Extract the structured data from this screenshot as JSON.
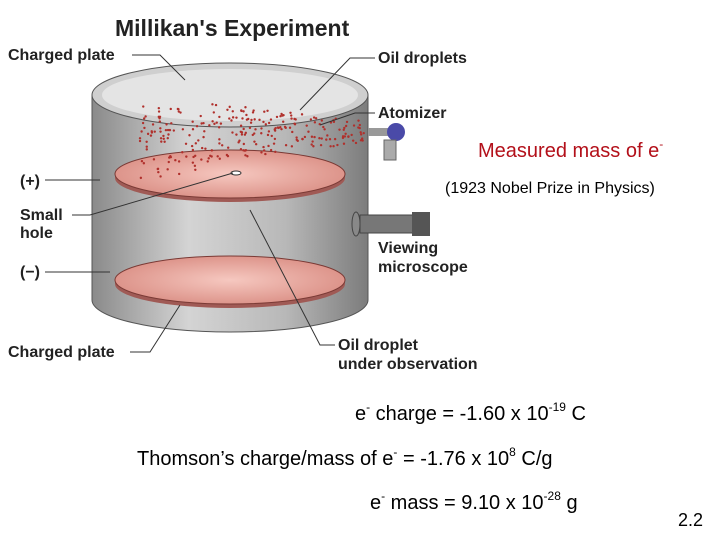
{
  "diagram": {
    "title": "Millikan's Experiment",
    "labels": {
      "top_plate": "Charged plate",
      "oil_droplets": "Oil droplets",
      "atomizer": "Atomizer",
      "plus": "(+)",
      "small_hole": [
        "Small",
        "hole"
      ],
      "minus": "(−)",
      "microscope": [
        "Viewing",
        "microscope"
      ],
      "bottom_plate": "Charged plate",
      "droplet": [
        "Oil droplet",
        "under observation"
      ]
    }
  },
  "notes": {
    "measured": [
      "Measured mass of e",
      "-"
    ],
    "nobel": "(1923 Nobel Prize in Physics)"
  },
  "equations": [
    [
      "e",
      "-",
      " charge = -1.60 x 10",
      "-19",
      " C"
    ],
    [
      "Thomson’s charge/mass of e",
      "-",
      " = -1.76 x 10",
      "8",
      " C/g"
    ],
    [
      "e",
      "-",
      " mass = 9.10 x 10",
      "-28",
      " g"
    ]
  ],
  "page_number": "2.2"
}
